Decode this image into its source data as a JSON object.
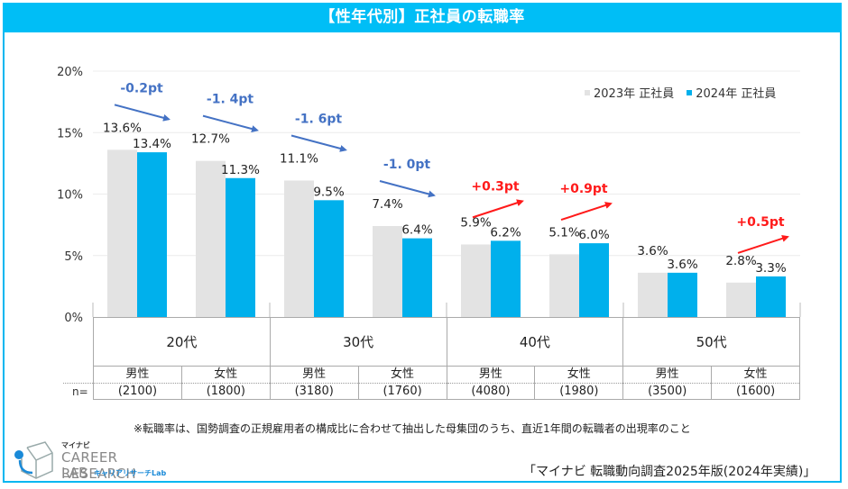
{
  "title": "【性年代別】正社員の転職率",
  "colors": {
    "series2023": "#e3e3e3",
    "series2024": "#00b0ec",
    "up": "#ff1a1a",
    "down": "#4472c4",
    "accent": "#00bef6"
  },
  "legend": [
    {
      "label": "2023年 正社員",
      "color": "#e3e3e3"
    },
    {
      "label": "2024年 正社員",
      "color": "#00b0ec"
    }
  ],
  "n_label": "n=",
  "age_groups": [
    "20代",
    "30代",
    "40代",
    "50代"
  ],
  "subgroups": [
    {
      "gender": "男性",
      "n": "(2100)"
    },
    {
      "gender": "女性",
      "n": "(1800)"
    },
    {
      "gender": "男性",
      "n": "(3180)"
    },
    {
      "gender": "女性",
      "n": "(1760)"
    },
    {
      "gender": "男性",
      "n": "(4080)"
    },
    {
      "gender": "女性",
      "n": "(1980)"
    },
    {
      "gender": "男性",
      "n": "(3500)"
    },
    {
      "gender": "女性",
      "n": "(1600)"
    }
  ],
  "footnote": "※転職率は、国勢調査の正規雇用者の構成比に合わせて抽出した母集団のうち、直近1年間の転職者の出現率のこと",
  "source": "「マイナビ 転職動向調査2025年版(2024年実績)」",
  "logo": {
    "brand": "マイナビ",
    "line1": "CAREER RESEARCH",
    "line2": "LAB",
    "sub": "キャリアリサーチLab"
  },
  "chart_data": {
    "type": "bar",
    "title": "【性年代別】正社員の転職率",
    "categories": [
      "20代 男性",
      "20代 女性",
      "30代 男性",
      "30代 女性",
      "40代 男性",
      "40代 女性",
      "50代 男性",
      "50代 女性"
    ],
    "series": [
      {
        "name": "2023年 正社員",
        "values": [
          13.6,
          12.7,
          11.1,
          7.4,
          5.9,
          5.1,
          3.6,
          2.8
        ],
        "labels": [
          "13.6%",
          "12.7%",
          "11.1%",
          "7.4%",
          "5.9%",
          "5.1%",
          "3.6%",
          "2.8%"
        ]
      },
      {
        "name": "2024年 正社員",
        "values": [
          13.4,
          11.3,
          9.5,
          6.4,
          6.2,
          6.0,
          3.6,
          3.3
        ],
        "labels": [
          "13.4%",
          "11.3%",
          "9.5%",
          "6.4%",
          "6.2%",
          "6.0%",
          "3.6%",
          "3.3%"
        ]
      }
    ],
    "annotations": [
      {
        "index": 0,
        "text": "-0.2pt",
        "direction": "down"
      },
      {
        "index": 1,
        "text": "-1. 4pt",
        "direction": "down"
      },
      {
        "index": 2,
        "text": "-1. 6pt",
        "direction": "down"
      },
      {
        "index": 3,
        "text": "-1. 0pt",
        "direction": "down"
      },
      {
        "index": 4,
        "text": "+0.3pt",
        "direction": "up"
      },
      {
        "index": 5,
        "text": "+0.9pt",
        "direction": "up"
      },
      {
        "index": 7,
        "text": "+0.5pt",
        "direction": "up"
      }
    ],
    "yticks": [
      "0%",
      "5%",
      "10%",
      "15%",
      "20%"
    ],
    "ytick_values": [
      0,
      5,
      10,
      15,
      20
    ],
    "ylim": [
      0,
      20
    ],
    "xlabel": "",
    "ylabel": "",
    "grid": true,
    "legend_position": "top-right"
  }
}
